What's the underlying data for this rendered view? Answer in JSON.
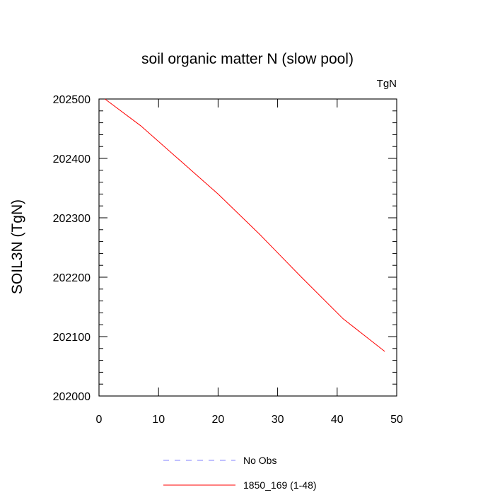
{
  "chart_data": {
    "type": "line",
    "title": "soil organic matter N (slow pool)",
    "unit_label": "TgN",
    "xlabel": "",
    "ylabel": "SOIL3N  (TgN)",
    "xlim": [
      0,
      50
    ],
    "ylim": [
      202000,
      202500
    ],
    "x_ticks": [
      0,
      10,
      20,
      30,
      40,
      50
    ],
    "y_ticks": [
      202000,
      202100,
      202200,
      202300,
      202400,
      202500
    ],
    "x_tick_labels": [
      "0",
      "10",
      "20",
      "30",
      "40",
      "50"
    ],
    "y_tick_labels": [
      "202000",
      "202100",
      "202200",
      "202300",
      "202400",
      "202500"
    ],
    "grid": false,
    "legend_position": "bottom",
    "series": [
      {
        "name": "No Obs",
        "color": "#8080ff",
        "style": "dashed",
        "x": [],
        "y": []
      },
      {
        "name": "1850_169 (1-48)",
        "color": "#ff0000",
        "style": "solid",
        "x": [
          1,
          7,
          13,
          20,
          27,
          34,
          41,
          48
        ],
        "y": [
          202500,
          202455,
          202402,
          202340,
          202272,
          202200,
          202130,
          202075
        ]
      }
    ]
  }
}
